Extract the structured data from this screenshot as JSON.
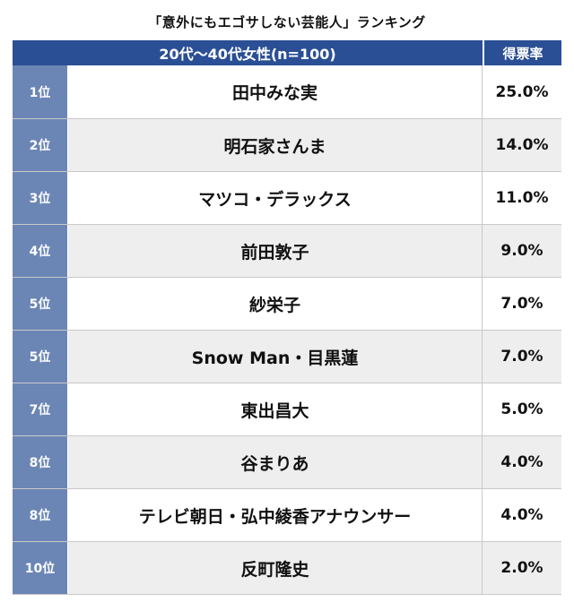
{
  "chart_data": {
    "type": "table",
    "title": "「意外にもエゴサしない芸能人」ランキング",
    "header": {
      "main": "20代〜40代女性(n=100)",
      "rate": "得票率"
    },
    "rows": [
      {
        "rank": "1位",
        "name": "田中みな実",
        "rate": "25.0%"
      },
      {
        "rank": "2位",
        "name": "明石家さんま",
        "rate": "14.0%"
      },
      {
        "rank": "3位",
        "name": "マツコ・デラックス",
        "rate": "11.0%"
      },
      {
        "rank": "4位",
        "name": "前田敦子",
        "rate": "9.0%"
      },
      {
        "rank": "5位",
        "name": "紗栄子",
        "rate": "7.0%"
      },
      {
        "rank": "5位",
        "name": "Snow Man・目黒蓮",
        "rate": "7.0%"
      },
      {
        "rank": "7位",
        "name": "東出昌大",
        "rate": "5.0%"
      },
      {
        "rank": "8位",
        "name": "谷まりあ",
        "rate": "4.0%"
      },
      {
        "rank": "8位",
        "name": "テレビ朝日・弘中綾香アナウンサー",
        "rate": "4.0%"
      },
      {
        "rank": "10位",
        "name": "反町隆史",
        "rate": "2.0%"
      }
    ]
  },
  "colors": {
    "header_bg": "#2b4f95",
    "rank_bg": "#6b86b5",
    "shade_bg": "#eeeeee"
  }
}
